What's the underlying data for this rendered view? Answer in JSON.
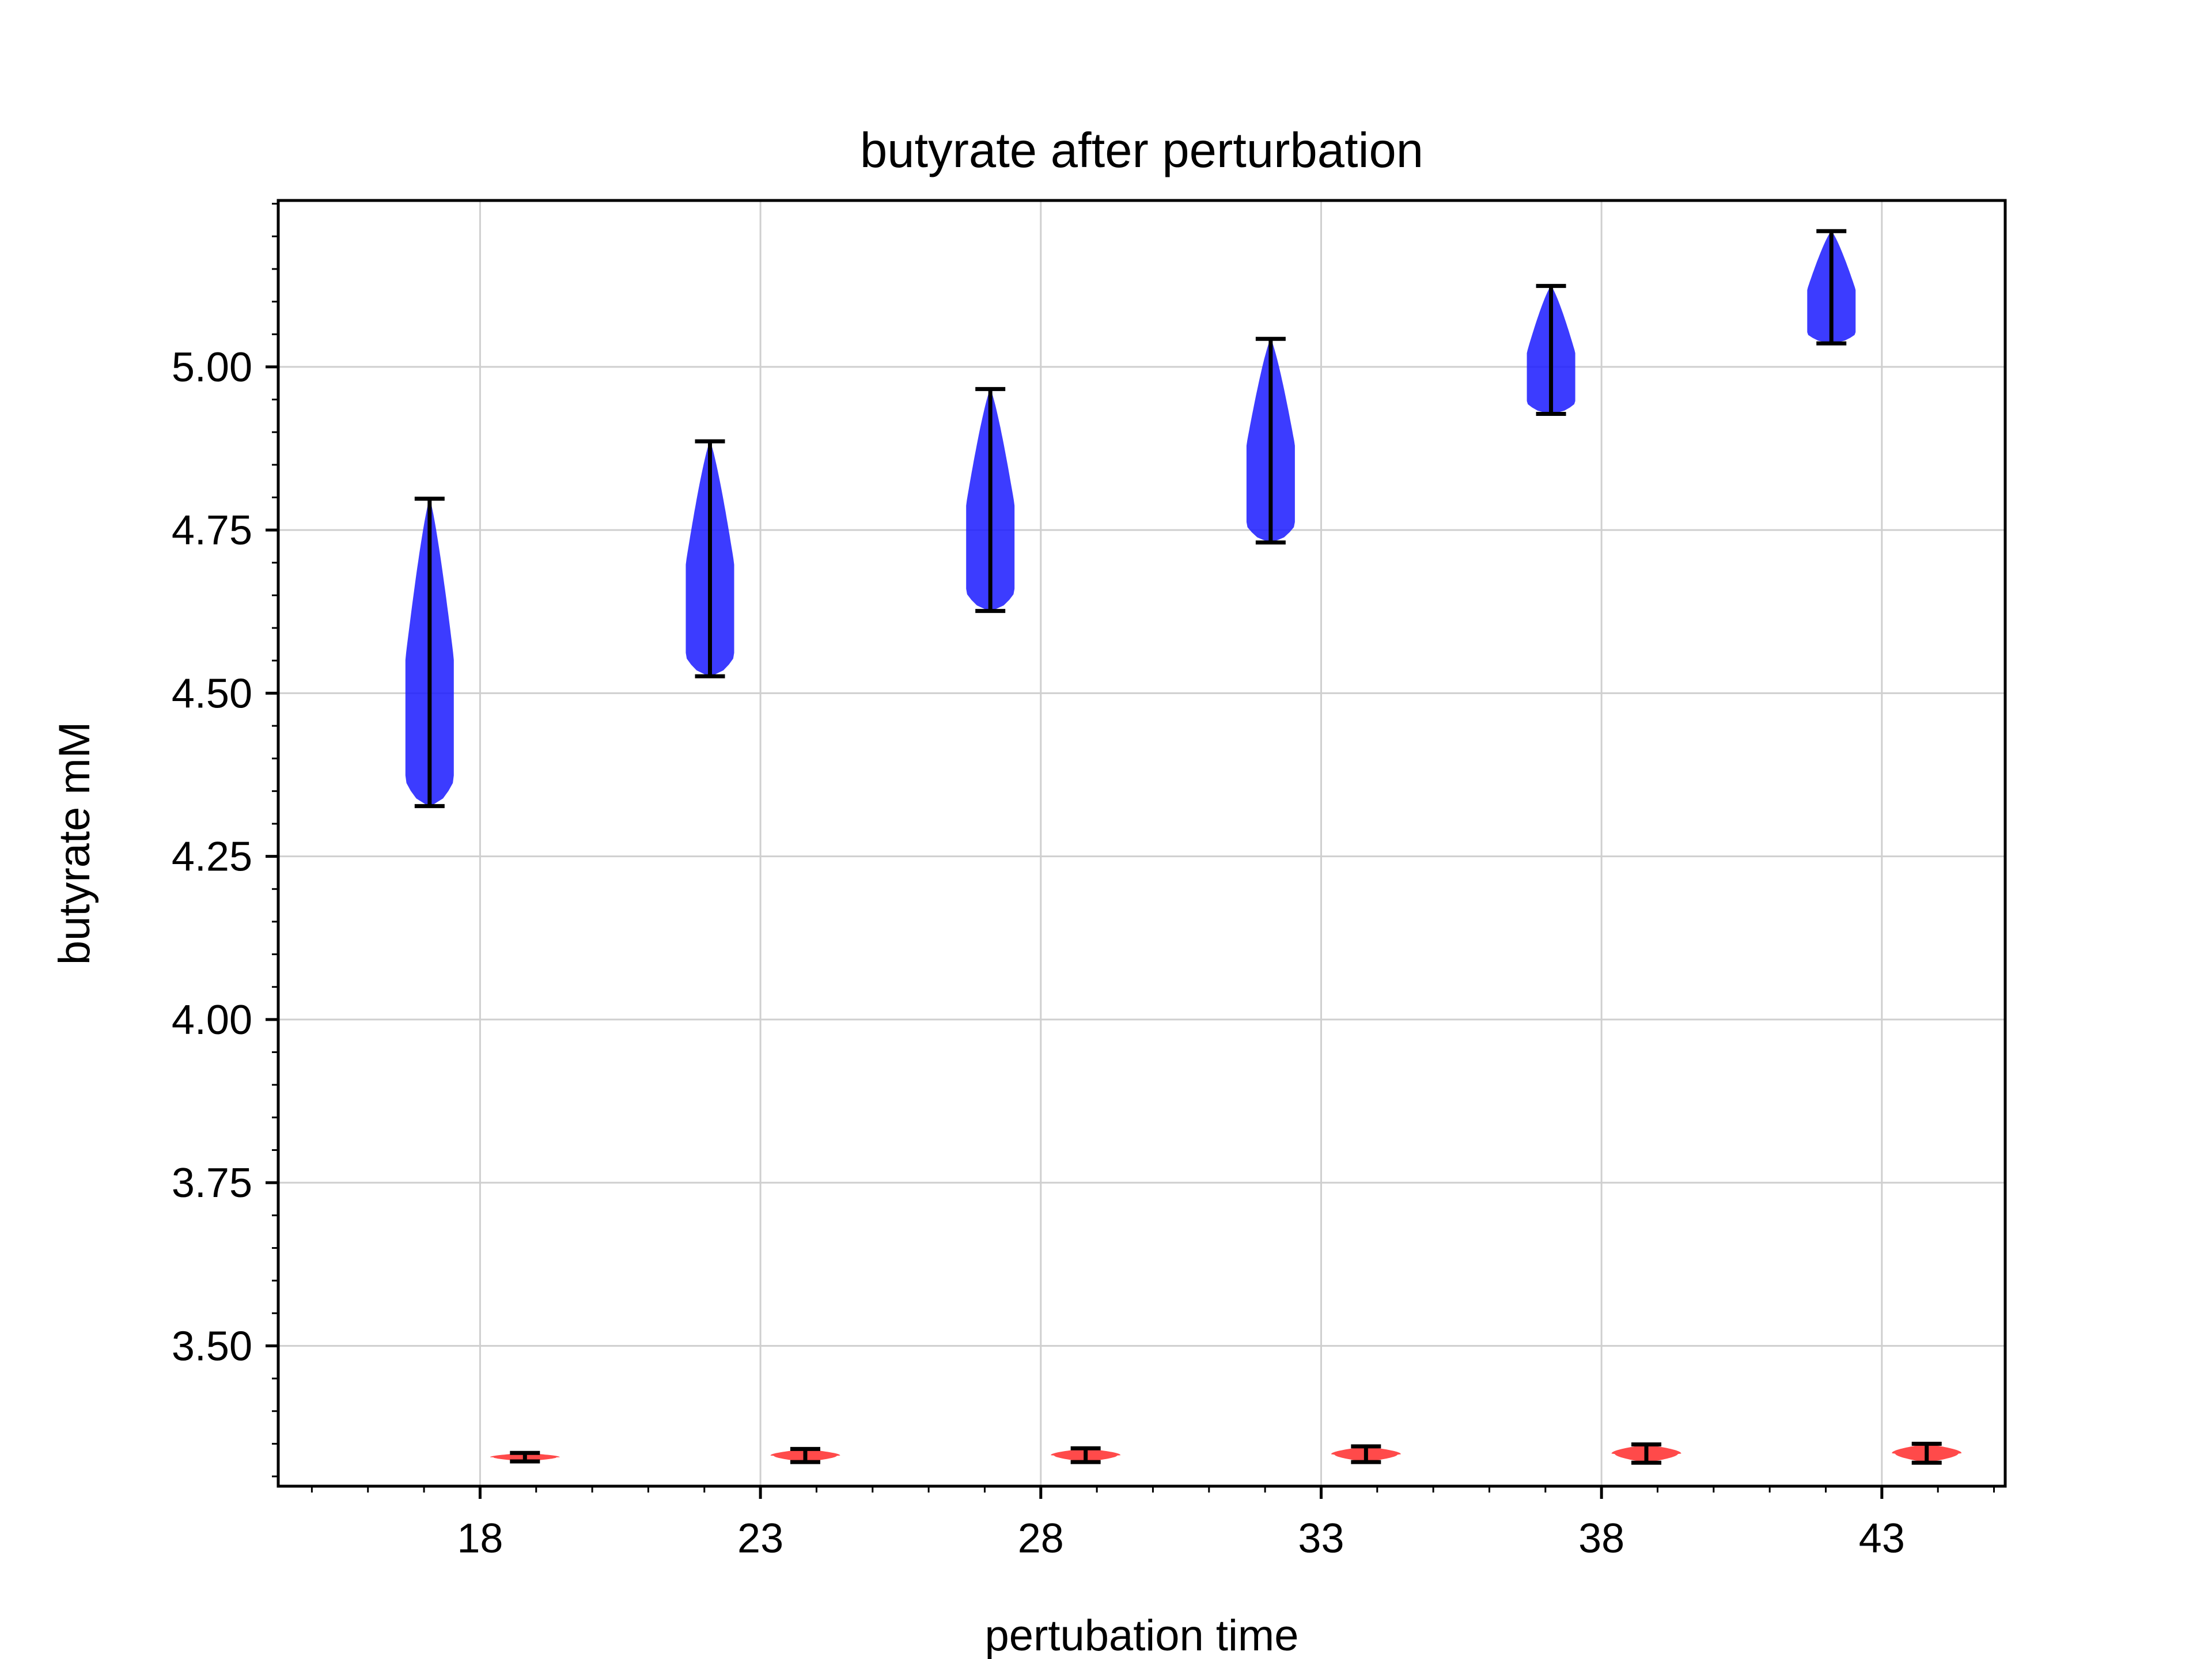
{
  "chart_data": {
    "type": "violin",
    "title": "butyrate after perturbation",
    "xlabel": "pertubation time",
    "ylabel": "butyrate mM",
    "xlim": [
      14.4,
      45.2
    ],
    "ylim": [
      3.285,
      5.255
    ],
    "x_ticks": [
      18,
      23,
      28,
      33,
      38,
      43
    ],
    "x_tick_labels": [
      "18",
      "23",
      "28",
      "33",
      "38",
      "43"
    ],
    "y_ticks": [
      3.5,
      3.75,
      4.0,
      4.25,
      4.5,
      4.75,
      5.0
    ],
    "y_tick_labels": [
      "3.50",
      "3.75",
      "4.00",
      "4.25",
      "4.50",
      "4.75",
      "5.00"
    ],
    "grid": true,
    "series": [
      {
        "color": "#1a1aff",
        "violins": [
          {
            "x": 17.1,
            "min": 4.327,
            "max": 4.798
          },
          {
            "x": 22.1,
            "min": 4.526,
            "max": 4.886
          },
          {
            "x": 27.1,
            "min": 4.626,
            "max": 4.966
          },
          {
            "x": 32.1,
            "min": 4.731,
            "max": 5.043
          },
          {
            "x": 37.1,
            "min": 4.928,
            "max": 5.124
          },
          {
            "x": 42.1,
            "min": 5.036,
            "max": 5.208
          }
        ]
      },
      {
        "color": "#ff2a2a",
        "violins": [
          {
            "x": 18.8,
            "min": 3.323,
            "max": 3.336
          },
          {
            "x": 23.8,
            "min": 3.322,
            "max": 3.342
          },
          {
            "x": 28.8,
            "min": 3.322,
            "max": 3.343
          },
          {
            "x": 33.8,
            "min": 3.322,
            "max": 3.346
          },
          {
            "x": 38.8,
            "min": 3.321,
            "max": 3.349
          },
          {
            "x": 43.8,
            "min": 3.321,
            "max": 3.35
          }
        ]
      }
    ]
  }
}
